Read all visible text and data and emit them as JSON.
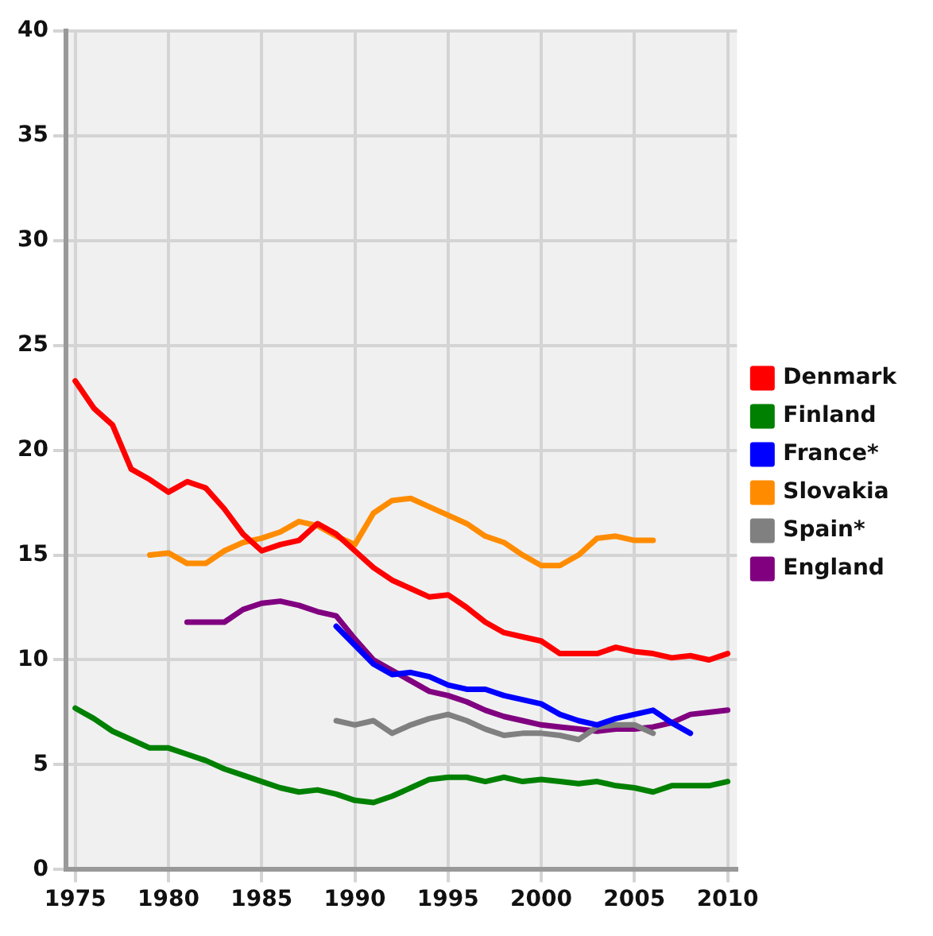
{
  "chart_data": {
    "type": "line",
    "x": [
      1975,
      1976,
      1977,
      1978,
      1979,
      1980,
      1981,
      1982,
      1983,
      1984,
      1985,
      1986,
      1987,
      1988,
      1989,
      1990,
      1991,
      1992,
      1993,
      1994,
      1995,
      1996,
      1997,
      1998,
      1999,
      2000,
      2001,
      2002,
      2003,
      2004,
      2005,
      2006,
      2007,
      2008,
      2009,
      2010
    ],
    "series": [
      {
        "name": "Denmark",
        "color": "#ff0000",
        "values": [
          23.3,
          22,
          21.2,
          19.1,
          18.6,
          18,
          18.5,
          18.2,
          17.2,
          16,
          15.2,
          15.5,
          15.7,
          16.5,
          16,
          15.2,
          14.4,
          13.8,
          13.4,
          13,
          13.1,
          12.5,
          11.8,
          11.3,
          11.1,
          10.9,
          10.3,
          10.3,
          10.3,
          10.6,
          10.4,
          10.3,
          10.1,
          10.2,
          10,
          10.3
        ]
      },
      {
        "name": "Finland",
        "color": "#008000",
        "values": [
          7.7,
          7.2,
          6.6,
          6.2,
          5.8,
          5.8,
          5.5,
          5.2,
          4.8,
          4.5,
          4.2,
          3.9,
          3.7,
          3.8,
          3.6,
          3.3,
          3.2,
          3.5,
          3.9,
          4.3,
          4.4,
          4.4,
          4.2,
          4.4,
          4.2,
          4.3,
          4.2,
          4.1,
          4.2,
          4.0,
          3.9,
          3.7,
          4.0,
          4.0,
          4.0,
          4.2
        ]
      },
      {
        "name": "France*",
        "color": "#0000ff",
        "values": [
          null,
          null,
          null,
          null,
          null,
          null,
          null,
          null,
          null,
          null,
          null,
          null,
          null,
          null,
          11.6,
          10.7,
          9.8,
          9.3,
          9.4,
          9.2,
          8.8,
          8.6,
          8.6,
          8.3,
          8.1,
          7.9,
          7.4,
          7.1,
          6.9,
          7.2,
          7.4,
          7.6,
          7.0,
          6.5,
          null,
          null
        ]
      },
      {
        "name": "Slovakia",
        "color": "#ff8c00",
        "values": [
          null,
          null,
          null,
          null,
          15.0,
          15.1,
          14.6,
          14.6,
          15.2,
          15.6,
          15.8,
          16.1,
          16.6,
          16.4,
          15.9,
          15.5,
          17.0,
          17.6,
          17.7,
          17.3,
          16.9,
          16.5,
          15.9,
          15.6,
          15.0,
          14.5,
          14.5,
          15.0,
          15.8,
          15.9,
          15.7,
          15.7,
          null,
          null,
          null,
          null
        ]
      },
      {
        "name": "Spain*",
        "color": "#808080",
        "values": [
          null,
          null,
          null,
          null,
          null,
          null,
          null,
          null,
          null,
          null,
          null,
          null,
          null,
          null,
          7.1,
          6.9,
          7.1,
          6.5,
          6.9,
          7.2,
          7.4,
          7.1,
          6.7,
          6.4,
          6.5,
          6.5,
          6.4,
          6.2,
          6.8,
          6.9,
          6.9,
          6.5,
          null,
          null,
          null,
          null
        ]
      },
      {
        "name": "England",
        "color": "#800080",
        "values": [
          null,
          null,
          null,
          null,
          null,
          null,
          11.8,
          11.8,
          11.8,
          12.4,
          12.7,
          12.8,
          12.6,
          12.3,
          12.1,
          11.0,
          10.0,
          9.5,
          9.0,
          8.5,
          8.3,
          8.0,
          7.6,
          7.3,
          7.1,
          6.9,
          6.8,
          6.7,
          6.6,
          6.7,
          6.7,
          6.8,
          7.0,
          7.4,
          7.5,
          7.6
        ]
      }
    ],
    "xlim": [
      1974.5,
      2010.5
    ],
    "xticks": [
      1975,
      1980,
      1985,
      1990,
      1995,
      2000,
      2005,
      2010
    ],
    "ylim": [
      0,
      40
    ],
    "yticks": [
      0,
      5,
      10,
      15,
      20,
      25,
      30,
      35,
      40
    ],
    "grid": true,
    "legend": "right",
    "marker": "none",
    "line_style": "solid"
  }
}
